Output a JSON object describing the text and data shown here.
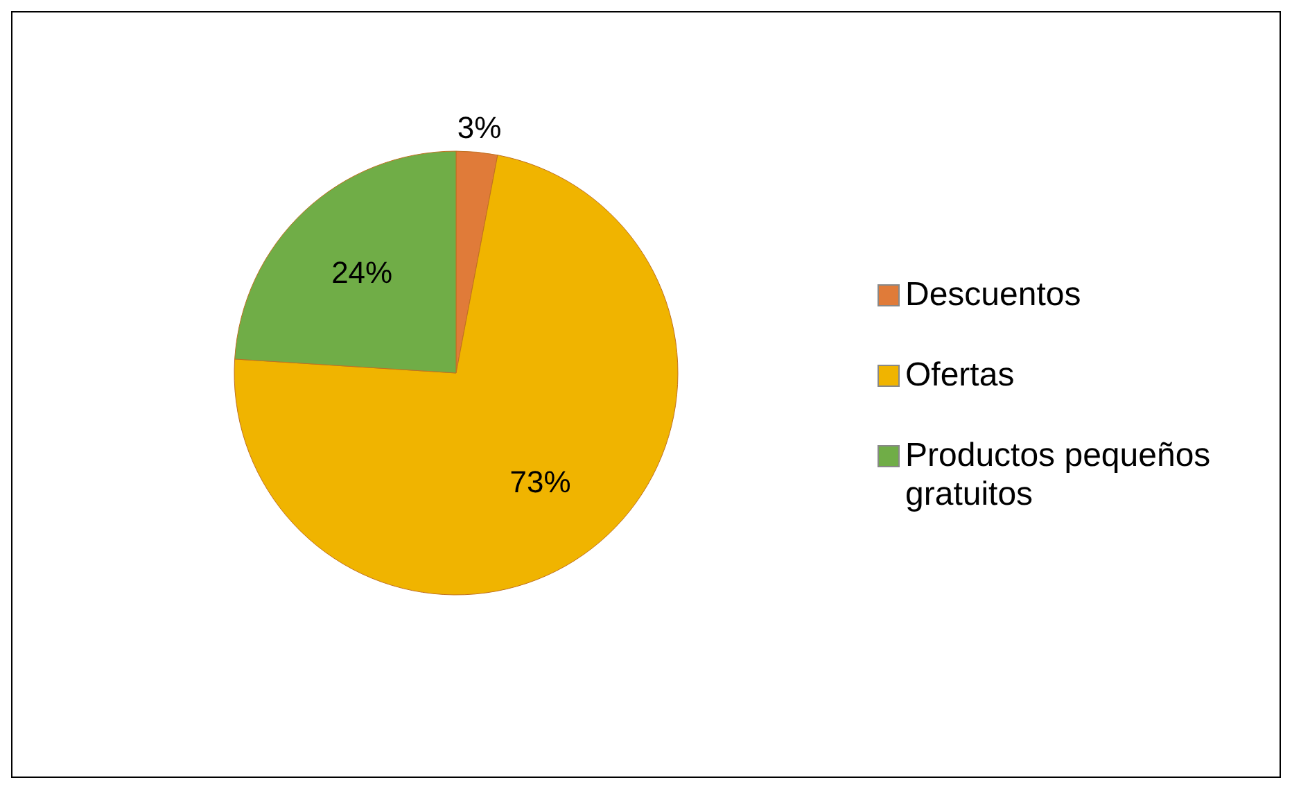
{
  "chart_data": {
    "type": "pie",
    "categories": [
      "Descuentos",
      "Ofertas",
      "Productos pequeños gratuitos"
    ],
    "values": [
      3,
      73,
      24
    ],
    "colors": [
      "#e07b39",
      "#f0b400",
      "#70ad47"
    ],
    "value_labels": [
      "3%",
      "73%",
      "24%"
    ],
    "legend": "right"
  }
}
